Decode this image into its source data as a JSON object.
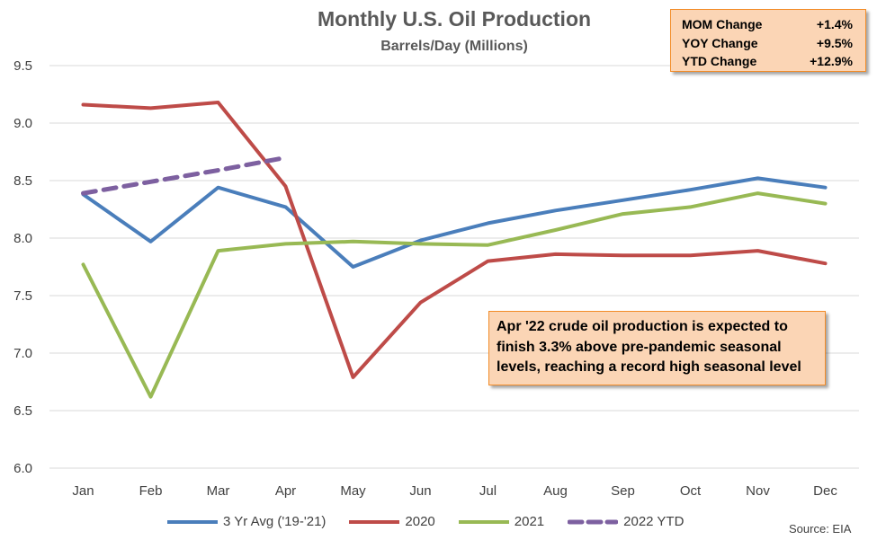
{
  "chart_data": {
    "type": "line",
    "title": "Monthly U.S. Oil Production",
    "subtitle": "Barrels/Day (Millions)",
    "categories": [
      "Jan",
      "Feb",
      "Mar",
      "Apr",
      "May",
      "Jun",
      "Jul",
      "Aug",
      "Sep",
      "Oct",
      "Nov",
      "Dec"
    ],
    "y_ticks": [
      "6.0",
      "6.5",
      "7.0",
      "7.5",
      "8.0",
      "8.5",
      "9.0",
      "9.5"
    ],
    "ylim": [
      6.0,
      9.5
    ],
    "grid": true,
    "legend_position": "bottom",
    "series": [
      {
        "name": "3 Yr Avg ('19-'21)",
        "color": "#4a7ebb",
        "dashed": false,
        "values": [
          8.38,
          7.97,
          8.44,
          8.27,
          7.75,
          7.98,
          8.13,
          8.24,
          8.33,
          8.42,
          8.52,
          8.44
        ]
      },
      {
        "name": "2020",
        "color": "#be4b48",
        "dashed": false,
        "values": [
          9.16,
          9.13,
          9.18,
          8.45,
          6.79,
          7.44,
          7.8,
          7.86,
          7.85,
          7.85,
          7.89,
          7.78
        ]
      },
      {
        "name": "2021",
        "color": "#98b954",
        "dashed": false,
        "values": [
          7.77,
          6.62,
          7.89,
          7.95,
          7.97,
          7.95,
          7.94,
          8.07,
          8.21,
          8.27,
          8.39,
          8.3
        ]
      },
      {
        "name": "2022 YTD",
        "color": "#7d60a0",
        "dashed": true,
        "values": [
          8.39,
          8.49,
          8.59,
          8.7,
          null,
          null,
          null,
          null,
          null,
          null,
          null,
          null
        ]
      }
    ]
  },
  "stats_box": {
    "rows": [
      {
        "label": "MOM Change",
        "value": "+1.4%"
      },
      {
        "label": "YOY Change",
        "value": "+9.5%"
      },
      {
        "label": "YTD Change",
        "value": "+12.9%"
      }
    ]
  },
  "annotation": {
    "lines": [
      "Apr '22 crude oil production is expected to",
      "finish 3.3% above pre-pandemic seasonal",
      "levels, reaching a record high seasonal level"
    ]
  },
  "source": "Source: EIA"
}
